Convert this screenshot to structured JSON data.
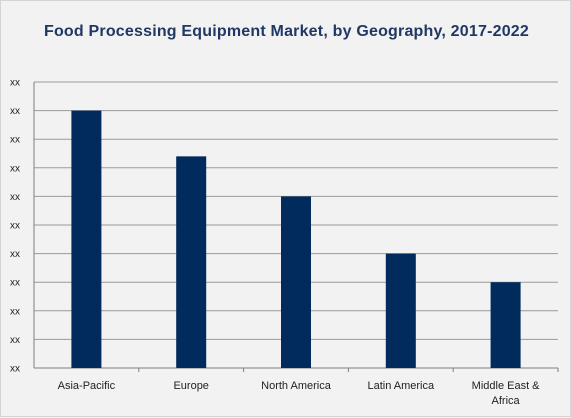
{
  "chart_data": {
    "type": "bar",
    "title": "Food Processing Equipment Market, by Geography, 2017-2022",
    "categories": [
      "Asia-Pacific",
      "Europe",
      "North America",
      "Latin America",
      "Middle East & Africa"
    ],
    "category_lines": [
      [
        "Asia-Pacific"
      ],
      [
        "Europe"
      ],
      [
        "North America"
      ],
      [
        "Latin America"
      ],
      [
        "Middle East &",
        "Africa"
      ]
    ],
    "values": [
      9,
      7.4,
      6,
      4,
      3
    ],
    "ylim": [
      0,
      10
    ],
    "ytick_values": [
      0,
      1,
      2,
      3,
      4,
      5,
      6,
      7,
      8,
      9,
      10
    ],
    "ytick_labels": [
      "xx",
      "xx",
      "xx",
      "xx",
      "xx",
      "xx",
      "xx",
      "xx",
      "xx",
      "xx",
      "xx"
    ],
    "xlabel": "",
    "ylabel": "",
    "grid": true,
    "legend": "none",
    "colors": {
      "bar": "#002b5c",
      "grid": "#9a9a9a",
      "axis": "#7f7f7f",
      "background": "#f2f2f2"
    }
  }
}
